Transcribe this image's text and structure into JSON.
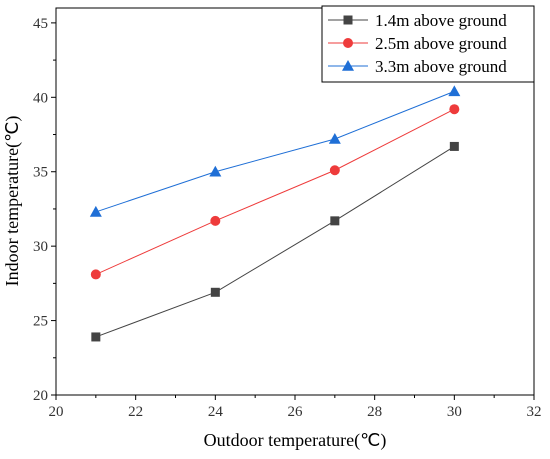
{
  "chart_data": {
    "type": "line",
    "xlabel": "Outdoor temperature(℃)",
    "ylabel": "Indoor temperature(℃)",
    "xlim": [
      20,
      32
    ],
    "ylim": [
      20,
      46
    ],
    "xticks": [
      20,
      22,
      24,
      26,
      28,
      30,
      32
    ],
    "yticks": [
      20,
      25,
      30,
      35,
      40,
      45
    ],
    "legend_position": "top-right",
    "grid": false,
    "series": [
      {
        "name": "1.4m above ground",
        "color": "#444444",
        "marker": "square",
        "x": [
          21,
          24,
          27,
          30
        ],
        "y": [
          23.9,
          26.9,
          31.7,
          36.7
        ]
      },
      {
        "name": "2.5m above ground",
        "color": "#ee3b3b",
        "marker": "circle",
        "x": [
          21,
          24,
          27,
          30
        ],
        "y": [
          28.1,
          31.7,
          35.1,
          39.2
        ]
      },
      {
        "name": "3.3m above ground",
        "color": "#1f6fd6",
        "marker": "triangle",
        "x": [
          21,
          24,
          27,
          30
        ],
        "y": [
          32.3,
          35.0,
          37.2,
          40.4
        ]
      }
    ]
  }
}
